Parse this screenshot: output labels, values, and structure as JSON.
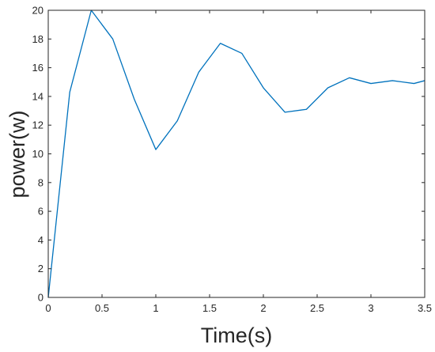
{
  "chart_data": {
    "type": "line",
    "xlabel": "Time(s)",
    "ylabel": "power(w)",
    "xlim": [
      0,
      3.5
    ],
    "ylim": [
      0,
      20
    ],
    "xticks": [
      0,
      0.5,
      1,
      1.5,
      2,
      2.5,
      3,
      3.5
    ],
    "yticks": [
      0,
      2,
      4,
      6,
      8,
      10,
      12,
      14,
      16,
      18,
      20
    ],
    "grid": false,
    "series": [
      {
        "color": "#0072BD",
        "x": [
          0,
          0.2,
          0.4,
          0.6,
          0.8,
          1.0,
          1.2,
          1.4,
          1.6,
          1.8,
          2.0,
          2.2,
          2.4,
          2.6,
          2.8,
          3.0,
          3.2,
          3.4,
          3.5
        ],
        "y": [
          0,
          14.3,
          20.0,
          18.0,
          13.8,
          10.3,
          12.3,
          15.7,
          17.7,
          17.0,
          14.6,
          12.9,
          13.1,
          14.6,
          15.3,
          14.9,
          15.1,
          14.9,
          15.1
        ]
      }
    ]
  }
}
